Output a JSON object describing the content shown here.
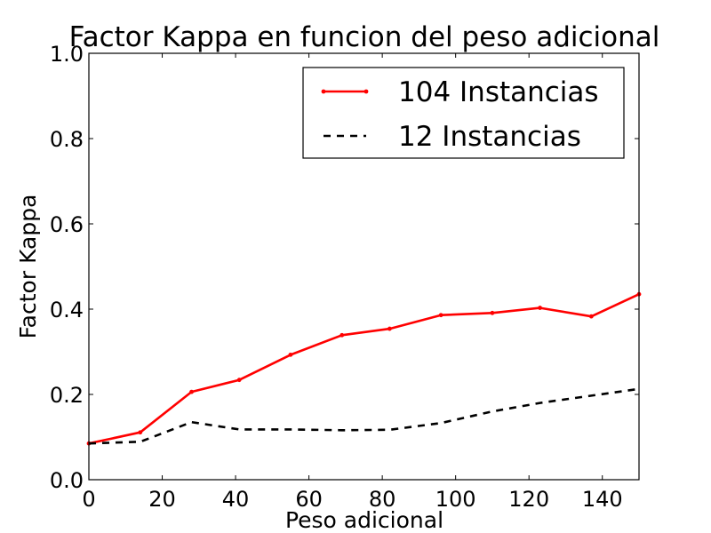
{
  "chart_data": {
    "type": "line",
    "title": "Factor Kappa en funcion del peso adicional",
    "xlabel": "Peso adicional",
    "ylabel": "Factor Kappa",
    "xlim": [
      0,
      150
    ],
    "ylim": [
      0,
      1.0
    ],
    "xticks": [
      0,
      20,
      40,
      60,
      80,
      100,
      120,
      140
    ],
    "xtick_labels": [
      "0",
      "20",
      "40",
      "60",
      "80",
      "100",
      "120",
      "140"
    ],
    "yticks": [
      0,
      0.2,
      0.4,
      0.6,
      0.8,
      1.0
    ],
    "ytick_labels": [
      "0.0",
      "0.2",
      "0.4",
      "0.6",
      "0.8",
      "1.0"
    ],
    "grid": false,
    "legend_position": "top-right",
    "series": [
      {
        "name": "104 Instancias",
        "color": "#ff0000",
        "style": "solid-markers",
        "x": [
          0,
          14,
          28,
          41,
          55,
          69,
          82,
          96,
          110,
          123,
          137,
          150
        ],
        "y": [
          0.085,
          0.111,
          0.206,
          0.234,
          0.293,
          0.339,
          0.354,
          0.386,
          0.391,
          0.403,
          0.383,
          0.435
        ]
      },
      {
        "name": "12 Instancias",
        "color": "#000000",
        "style": "dashed",
        "x": [
          0,
          14,
          28,
          41,
          55,
          69,
          82,
          96,
          110,
          123,
          137,
          150
        ],
        "y": [
          0.085,
          0.089,
          0.135,
          0.118,
          0.118,
          0.116,
          0.117,
          0.133,
          0.16,
          0.18,
          0.197,
          0.213
        ]
      }
    ]
  }
}
